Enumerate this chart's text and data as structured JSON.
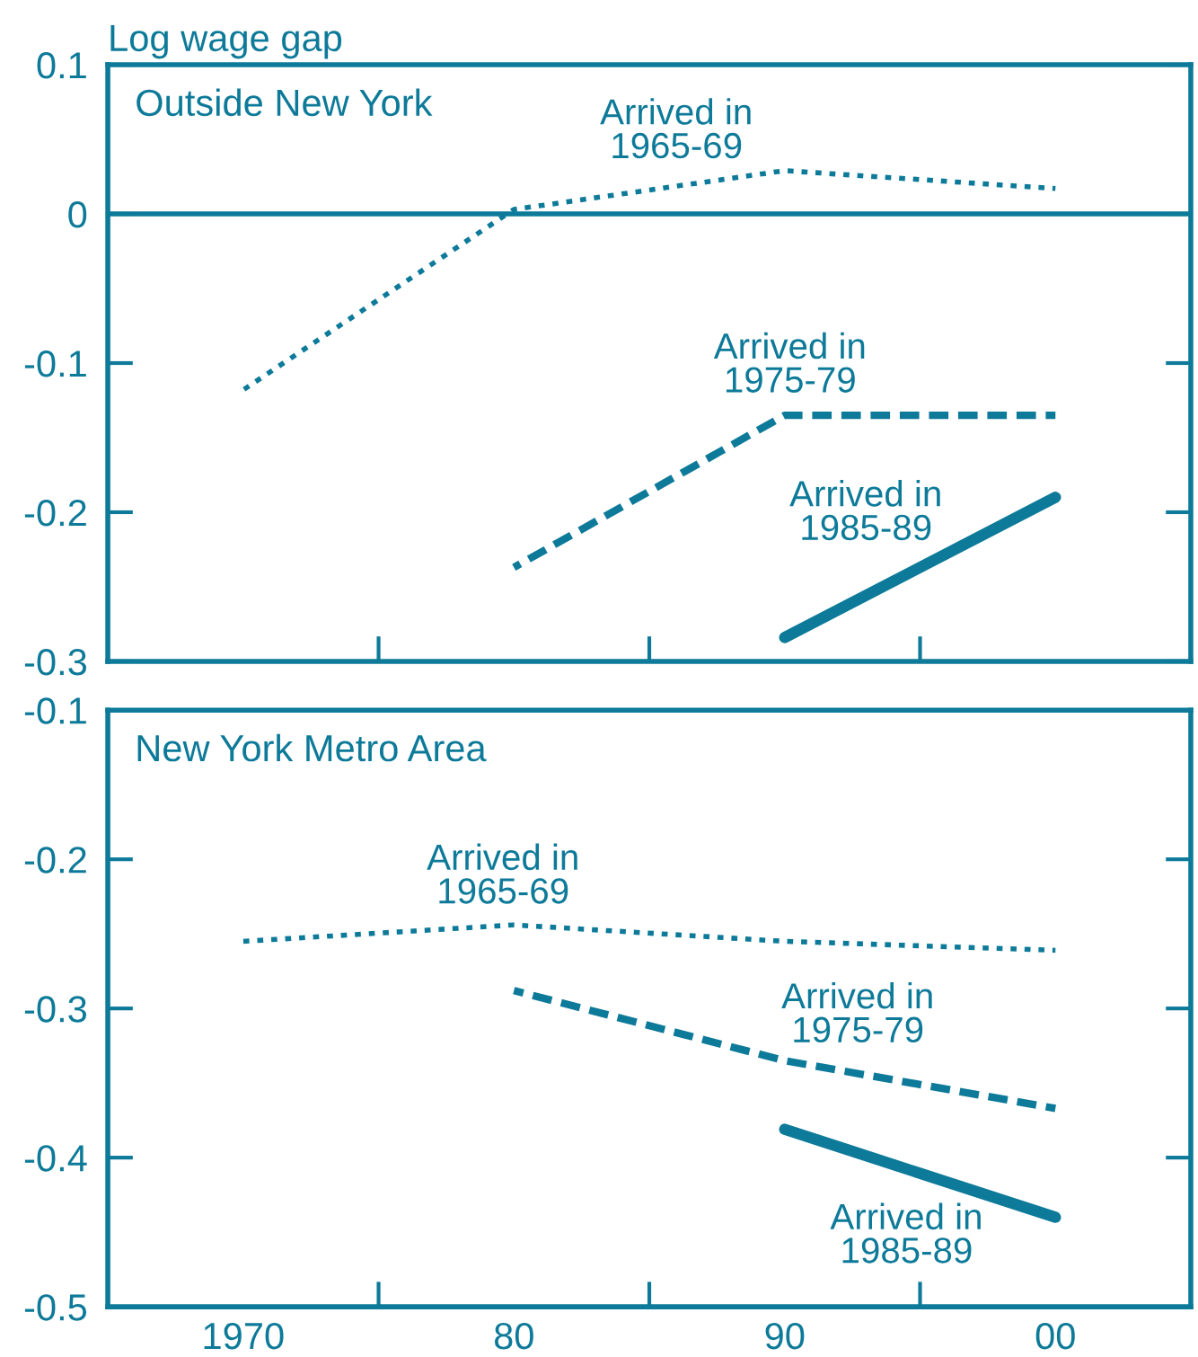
{
  "chart_data": [
    {
      "type": "line",
      "title": "Outside New York",
      "ylabel": "Log wage gap",
      "x": [
        1970,
        1980,
        1990,
        2000
      ],
      "series": [
        {
          "name": "Arrived in\n1965-69",
          "color": "#0d7a99",
          "line_style": "dotted",
          "values": [
            -0.118,
            0.003,
            0.029,
            0.017
          ]
        },
        {
          "name": "Arrived in\n1975-79",
          "color": "#0d7a99",
          "line_style": "dashed",
          "values": [
            null,
            -0.237,
            -0.135,
            -0.135
          ]
        },
        {
          "name": "Arrived in\n1985-89",
          "color": "#0d7a99",
          "line_style": "solid",
          "values": [
            null,
            null,
            -0.284,
            -0.19
          ]
        }
      ],
      "xlim": [
        1965,
        2005
      ],
      "xticks": [
        {
          "value": 1975,
          "label": null
        },
        {
          "value": 1985,
          "label": null
        },
        {
          "value": 1995,
          "label": null
        }
      ],
      "ylim": [
        -0.3,
        0.1
      ],
      "yticks": [
        {
          "value": 0.1,
          "label": "0.1"
        },
        {
          "value": 0,
          "label": "0"
        },
        {
          "value": -0.1,
          "label": "-0.1"
        },
        {
          "value": -0.2,
          "label": "-0.2"
        },
        {
          "value": -0.3,
          "label": "-0.3"
        }
      ],
      "tick_labels": "y",
      "grid": false,
      "legend": false,
      "ref_lines": [
        {
          "axis": "y",
          "value": 0,
          "color": "#0d7a99",
          "line_style": "solid"
        }
      ]
    },
    {
      "type": "line",
      "title": "New York Metro Area",
      "x": [
        1970,
        1980,
        1990,
        2000
      ],
      "series": [
        {
          "name": "Arrived in\n1965-69",
          "color": "#0d7a99",
          "line_style": "dotted",
          "values": [
            -0.255,
            -0.244,
            -0.255,
            -0.261
          ]
        },
        {
          "name": "Arrived in\n1975-79",
          "color": "#0d7a99",
          "line_style": "dashed",
          "values": [
            null,
            -0.288,
            -0.335,
            -0.367
          ]
        },
        {
          "name": "Arrived in\n1985-89",
          "color": "#0d7a99",
          "line_style": "solid",
          "values": [
            null,
            null,
            -0.381,
            -0.44
          ]
        }
      ],
      "xlim": [
        1965,
        2005
      ],
      "xticks": [
        {
          "value": 1970,
          "label": "1970"
        },
        {
          "value": 1975,
          "label": null
        },
        {
          "value": 1980,
          "label": "80"
        },
        {
          "value": 1985,
          "label": null
        },
        {
          "value": 1990,
          "label": "90"
        },
        {
          "value": 1995,
          "label": null
        },
        {
          "value": 2000,
          "label": "00"
        }
      ],
      "ylim": [
        -0.5,
        -0.1
      ],
      "yticks": [
        {
          "value": -0.1,
          "label": "-0.1"
        },
        {
          "value": -0.2,
          "label": "-0.2"
        },
        {
          "value": -0.3,
          "label": "-0.3"
        },
        {
          "value": -0.4,
          "label": "-0.4"
        },
        {
          "value": -0.5,
          "label": "-0.5"
        }
      ],
      "grid": false,
      "legend": false
    }
  ]
}
